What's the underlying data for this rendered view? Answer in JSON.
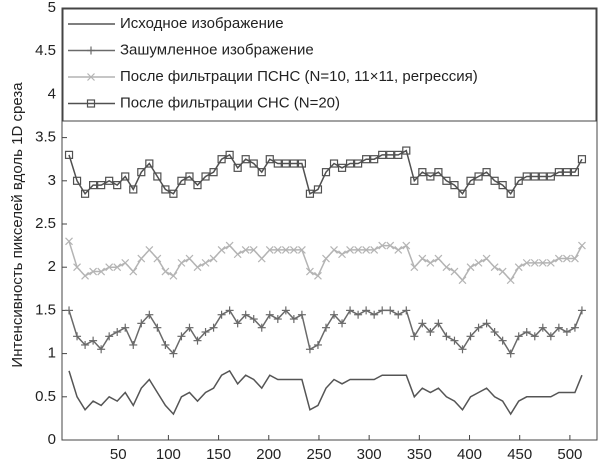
{
  "chart_data": {
    "type": "line",
    "ylabel": "Интенсивность пикселей вдоль 1D среза",
    "x": [
      1,
      9,
      17,
      25,
      33,
      41,
      49,
      57,
      65,
      73,
      81,
      89,
      97,
      105,
      113,
      121,
      129,
      137,
      145,
      153,
      161,
      169,
      177,
      185,
      193,
      201,
      209,
      217,
      225,
      233,
      241,
      249,
      257,
      265,
      273,
      281,
      289,
      297,
      305,
      313,
      321,
      329,
      337,
      345,
      353,
      361,
      369,
      377,
      385,
      393,
      401,
      409,
      417,
      425,
      433,
      441,
      449,
      457,
      465,
      473,
      481,
      489,
      497,
      505,
      512
    ],
    "series": [
      {
        "name": "Исходное изображение",
        "color": "#555555",
        "marker": "none",
        "values": [
          0.8,
          0.5,
          0.35,
          0.45,
          0.4,
          0.5,
          0.45,
          0.55,
          0.4,
          0.6,
          0.7,
          0.55,
          0.4,
          0.3,
          0.5,
          0.55,
          0.45,
          0.55,
          0.6,
          0.75,
          0.8,
          0.65,
          0.75,
          0.7,
          0.6,
          0.75,
          0.7,
          0.7,
          0.7,
          0.7,
          0.35,
          0.4,
          0.6,
          0.7,
          0.65,
          0.7,
          0.7,
          0.7,
          0.7,
          0.75,
          0.75,
          0.75,
          0.75,
          0.5,
          0.6,
          0.55,
          0.6,
          0.5,
          0.45,
          0.35,
          0.5,
          0.55,
          0.6,
          0.5,
          0.45,
          0.3,
          0.45,
          0.5,
          0.5,
          0.5,
          0.5,
          0.55,
          0.55,
          0.55,
          0.75
        ]
      },
      {
        "name": "Зашумленное изображение",
        "color": "#6a6a6a",
        "marker": "plus",
        "values": [
          1.5,
          1.2,
          1.1,
          1.15,
          1.05,
          1.2,
          1.25,
          1.3,
          1.1,
          1.35,
          1.45,
          1.3,
          1.1,
          1.0,
          1.2,
          1.3,
          1.15,
          1.25,
          1.3,
          1.45,
          1.5,
          1.35,
          1.45,
          1.4,
          1.3,
          1.45,
          1.4,
          1.5,
          1.4,
          1.45,
          1.05,
          1.1,
          1.3,
          1.45,
          1.35,
          1.5,
          1.45,
          1.5,
          1.45,
          1.5,
          1.5,
          1.45,
          1.5,
          1.2,
          1.35,
          1.25,
          1.35,
          1.2,
          1.15,
          1.05,
          1.2,
          1.3,
          1.35,
          1.25,
          1.15,
          1.0,
          1.2,
          1.25,
          1.2,
          1.3,
          1.2,
          1.3,
          1.25,
          1.3,
          1.5
        ]
      },
      {
        "name": "После фильтрации ПСНС (N=10, 11×11, регрессия)",
        "color": "#b4b4b4",
        "marker": "x",
        "values": [
          2.3,
          2.0,
          1.9,
          1.95,
          1.95,
          2.0,
          2.0,
          2.05,
          1.95,
          2.1,
          2.2,
          2.1,
          1.95,
          1.9,
          2.05,
          2.1,
          2.0,
          2.05,
          2.1,
          2.2,
          2.25,
          2.15,
          2.2,
          2.2,
          2.1,
          2.2,
          2.2,
          2.2,
          2.2,
          2.2,
          1.95,
          1.9,
          2.1,
          2.2,
          2.15,
          2.2,
          2.2,
          2.2,
          2.2,
          2.25,
          2.25,
          2.2,
          2.25,
          2.0,
          2.1,
          2.05,
          2.1,
          2.0,
          1.95,
          1.85,
          2.0,
          2.05,
          2.1,
          2.0,
          1.95,
          1.85,
          2.0,
          2.05,
          2.05,
          2.05,
          2.05,
          2.1,
          2.1,
          2.1,
          2.25
        ]
      },
      {
        "name": "После фильтрации СНС (N=20)",
        "color": "#505050",
        "marker": "square",
        "values": [
          3.3,
          3.0,
          2.85,
          2.95,
          2.95,
          3.0,
          2.95,
          3.05,
          2.9,
          3.1,
          3.2,
          3.05,
          2.9,
          2.85,
          3.0,
          3.05,
          2.95,
          3.05,
          3.1,
          3.25,
          3.3,
          3.15,
          3.25,
          3.2,
          3.1,
          3.25,
          3.2,
          3.2,
          3.2,
          3.2,
          2.85,
          2.9,
          3.1,
          3.2,
          3.15,
          3.2,
          3.2,
          3.25,
          3.25,
          3.3,
          3.3,
          3.3,
          3.35,
          3.0,
          3.1,
          3.05,
          3.1,
          3.0,
          2.95,
          2.85,
          3.0,
          3.05,
          3.1,
          3.0,
          2.95,
          2.85,
          3.0,
          3.05,
          3.05,
          3.05,
          3.05,
          3.1,
          3.1,
          3.1,
          3.25
        ]
      }
    ],
    "xlim": [
      -6,
      527
    ],
    "xticks": [
      50,
      100,
      150,
      200,
      250,
      300,
      350,
      400,
      450,
      500
    ],
    "ylim": [
      0,
      5
    ],
    "yticks": [
      0,
      0.5,
      1,
      1.5,
      2,
      2.5,
      3,
      3.5,
      4,
      4.5,
      5
    ],
    "legend": "upper left",
    "grid": false
  }
}
